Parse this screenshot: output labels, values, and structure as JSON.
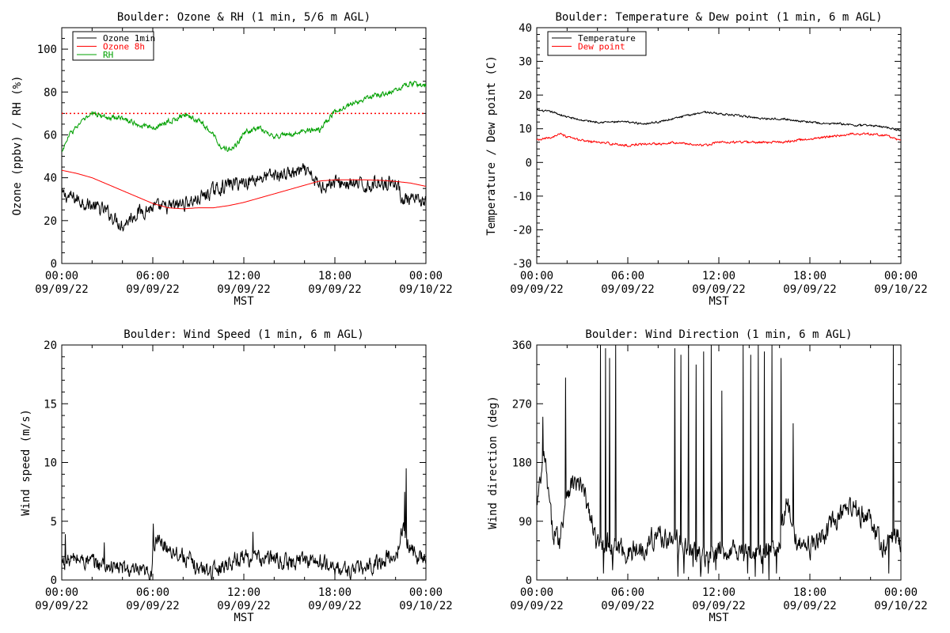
{
  "chart_data": [
    {
      "type": "line",
      "title": "Boulder: Ozone & RH (1 min, 5/6 m AGL)",
      "ylabel": "Ozone (ppbv) / RH (%)",
      "xlabel": "MST",
      "ylim": [
        0,
        110
      ],
      "yticks": [
        "0",
        "20",
        "40",
        "60",
        "80",
        "100"
      ],
      "x_range_hours": [
        0,
        24
      ],
      "xticks": [
        {
          "time": "00:00",
          "date": "09/09/22"
        },
        {
          "time": "06:00",
          "date": "09/09/22"
        },
        {
          "time": "12:00",
          "date": "09/09/22"
        },
        {
          "time": "18:00",
          "date": "09/09/22"
        },
        {
          "time": "00:00",
          "date": "09/10/22"
        }
      ],
      "legend_position": "top-left",
      "reference_line": {
        "y": 70,
        "color": "#ff0000",
        "style": "dotted"
      },
      "series": [
        {
          "name": "Ozone 1min",
          "color": "#000000",
          "x": [
            0,
            1,
            2,
            3,
            4,
            5,
            6,
            7,
            8,
            9,
            10,
            11,
            12,
            13,
            14,
            15,
            16,
            16.5,
            17,
            18,
            19,
            20,
            21,
            22,
            22.5,
            23,
            24
          ],
          "y": [
            32,
            30,
            27,
            24,
            18,
            24,
            26,
            26,
            28,
            30,
            34,
            37,
            38,
            40,
            41,
            42,
            43,
            40,
            36,
            38,
            37,
            36,
            38,
            38,
            30,
            29,
            29
          ],
          "noise": 3.5
        },
        {
          "name": "Ozone 8h",
          "color": "#ff0000",
          "x": [
            0,
            1,
            2,
            3,
            4,
            5,
            6,
            7,
            8,
            9,
            10,
            11,
            12,
            13,
            14,
            15,
            16,
            17,
            18,
            19,
            20,
            21,
            22,
            23,
            24
          ],
          "y": [
            43.5,
            42,
            40,
            37,
            34,
            31,
            28,
            26,
            25.5,
            26,
            26,
            27,
            28.5,
            30.5,
            32.5,
            34.5,
            36.5,
            38.5,
            39,
            39,
            39,
            38.8,
            38.3,
            37.5,
            36
          ],
          "noise": 0
        },
        {
          "name": "RH",
          "color": "#00a000",
          "x": [
            0,
            0.5,
            1,
            1.5,
            2,
            3,
            4,
            5,
            6,
            7,
            8,
            9,
            10,
            10.5,
            11,
            11.5,
            12,
            13,
            14,
            15,
            16,
            17,
            18,
            19,
            20,
            21,
            22,
            23,
            24
          ],
          "y": [
            52,
            60,
            64,
            67,
            70,
            68,
            68,
            65,
            63,
            66,
            69,
            67,
            60,
            55,
            53,
            55,
            61,
            63,
            59,
            60,
            62,
            62,
            71,
            74,
            77,
            79,
            81,
            84,
            83
          ],
          "noise": 1.3
        }
      ]
    },
    {
      "type": "line",
      "title": "Boulder: Temperature & Dew point (1 min, 6 m AGL)",
      "ylabel": "Temperature / Dew point (C)",
      "xlabel": "MST",
      "ylim": [
        -30,
        40
      ],
      "yticks": [
        "-30",
        "-20",
        "-10",
        "0",
        "10",
        "20",
        "30",
        "40"
      ],
      "x_range_hours": [
        0,
        24
      ],
      "xticks": [
        {
          "time": "00:00",
          "date": "09/09/22"
        },
        {
          "time": "06:00",
          "date": "09/09/22"
        },
        {
          "time": "12:00",
          "date": "09/09/22"
        },
        {
          "time": "18:00",
          "date": "09/09/22"
        },
        {
          "time": "00:00",
          "date": "09/10/22"
        }
      ],
      "legend_position": "top-left",
      "series": [
        {
          "name": "Temperature",
          "color": "#000000",
          "x": [
            0,
            1,
            2,
            3,
            4,
            5,
            6,
            7,
            8,
            9,
            10,
            11,
            12,
            13,
            14,
            15,
            16,
            17,
            18,
            19,
            20,
            21,
            22,
            23,
            24
          ],
          "y": [
            15.5,
            15,
            13.5,
            12.5,
            12,
            12,
            12,
            11.5,
            12,
            13,
            14,
            15,
            14.5,
            14,
            13.5,
            13,
            13,
            12.5,
            12,
            11.5,
            11.5,
            11,
            11,
            10.5,
            9.5
          ],
          "noise": 0.3
        },
        {
          "name": "Dew point",
          "color": "#ff0000",
          "x": [
            0,
            1,
            1.5,
            2,
            3,
            4,
            5,
            6,
            7,
            8,
            9,
            10,
            11,
            12,
            13,
            14,
            15,
            16,
            17,
            18,
            19,
            20,
            21,
            22,
            23,
            24
          ],
          "y": [
            6.5,
            7.5,
            8.5,
            7.5,
            6.5,
            6,
            5.5,
            5,
            5.5,
            5.5,
            6,
            5.5,
            5,
            6,
            6,
            6,
            6,
            6,
            6.5,
            7,
            7.5,
            8,
            8.5,
            8.5,
            8,
            6.5
          ],
          "noise": 0.35
        }
      ]
    },
    {
      "type": "line",
      "title": "Boulder: Wind Speed (1 min, 6 m AGL)",
      "ylabel": "Wind speed (m/s)",
      "xlabel": "MST",
      "ylim": [
        0,
        20
      ],
      "yticks": [
        "0",
        "5",
        "10",
        "15",
        "20"
      ],
      "x_range_hours": [
        0,
        24
      ],
      "xticks": [
        {
          "time": "00:00",
          "date": "09/09/22"
        },
        {
          "time": "06:00",
          "date": "09/09/22"
        },
        {
          "time": "12:00",
          "date": "09/09/22"
        },
        {
          "time": "18:00",
          "date": "09/09/22"
        },
        {
          "time": "00:00",
          "date": "09/10/22"
        }
      ],
      "series": [
        {
          "name": "",
          "color": "#000000",
          "x": [
            0,
            1,
            2,
            3,
            4,
            5,
            5.9,
            6,
            6.5,
            7,
            8,
            9,
            10,
            11,
            12,
            13,
            14,
            15,
            16,
            17,
            18,
            19,
            20,
            21,
            21.5,
            22,
            22.5,
            23,
            24
          ],
          "y": [
            1.5,
            1.8,
            1.5,
            1.2,
            1,
            0.6,
            0.5,
            3,
            3.2,
            2.8,
            2,
            1,
            0.8,
            1.5,
            2,
            1.8,
            1.8,
            1.4,
            1.8,
            1.5,
            1,
            0.8,
            1,
            1.5,
            2,
            1.7,
            4.5,
            2.5,
            1.8
          ],
          "noise": 0.75,
          "spikes": [
            {
              "x": 22.7,
              "y": 9.5
            },
            {
              "x": 22.6,
              "y": 7.5
            },
            {
              "x": 6.05,
              "y": 4.8
            },
            {
              "x": 0.25,
              "y": 3.9
            },
            {
              "x": 2.8,
              "y": 3.2
            },
            {
              "x": 12.6,
              "y": 4.1
            }
          ]
        }
      ]
    },
    {
      "type": "line",
      "title": "Boulder: Wind Direction (1 min, 6 m AGL)",
      "ylabel": "Wind direction (deg)",
      "xlabel": "MST",
      "ylim": [
        0,
        360
      ],
      "yticks": [
        "0",
        "90",
        "180",
        "270",
        "360"
      ],
      "x_range_hours": [
        0,
        24
      ],
      "xticks": [
        {
          "time": "00:00",
          "date": "09/09/22"
        },
        {
          "time": "06:00",
          "date": "09/09/22"
        },
        {
          "time": "12:00",
          "date": "09/09/22"
        },
        {
          "time": "18:00",
          "date": "09/09/22"
        },
        {
          "time": "00:00",
          "date": "09/10/22"
        }
      ],
      "series": [
        {
          "name": "",
          "color": "#000000",
          "x": [
            0,
            0.5,
            1,
            1.5,
            2,
            2.5,
            3,
            3.5,
            4,
            4.5,
            5,
            5.5,
            6,
            7,
            8,
            9,
            10,
            11,
            12,
            13,
            14,
            15,
            16,
            16.5,
            17,
            17.5,
            18,
            19,
            20,
            21,
            22,
            22.5,
            23,
            23.5,
            24
          ],
          "y": [
            110,
            190,
            80,
            60,
            140,
            150,
            140,
            100,
            50,
            60,
            50,
            50,
            40,
            50,
            70,
            60,
            50,
            30,
            40,
            50,
            40,
            40,
            60,
            120,
            60,
            60,
            50,
            70,
            100,
            110,
            90,
            60,
            50,
            70,
            60
          ],
          "noise": 18,
          "spikes": [
            {
              "x": 0.4,
              "y": 250
            },
            {
              "x": 1.9,
              "y": 310
            },
            {
              "x": 4.2,
              "y": 360
            },
            {
              "x": 4.4,
              "y": 10
            },
            {
              "x": 4.55,
              "y": 355
            },
            {
              "x": 4.8,
              "y": 340
            },
            {
              "x": 5.0,
              "y": 15
            },
            {
              "x": 5.2,
              "y": 360
            },
            {
              "x": 9.1,
              "y": 355
            },
            {
              "x": 9.3,
              "y": 5
            },
            {
              "x": 9.5,
              "y": 345
            },
            {
              "x": 9.7,
              "y": 10
            },
            {
              "x": 10.0,
              "y": 360
            },
            {
              "x": 10.3,
              "y": 20
            },
            {
              "x": 10.5,
              "y": 330
            },
            {
              "x": 10.8,
              "y": 5
            },
            {
              "x": 11.0,
              "y": 350
            },
            {
              "x": 11.3,
              "y": 10
            },
            {
              "x": 11.5,
              "y": 360
            },
            {
              "x": 11.8,
              "y": 15
            },
            {
              "x": 12.2,
              "y": 290
            },
            {
              "x": 13.6,
              "y": 360
            },
            {
              "x": 13.9,
              "y": 10
            },
            {
              "x": 14.1,
              "y": 345
            },
            {
              "x": 14.4,
              "y": 5
            },
            {
              "x": 14.6,
              "y": 360
            },
            {
              "x": 14.9,
              "y": 10
            },
            {
              "x": 15.0,
              "y": 350
            },
            {
              "x": 15.3,
              "y": 0
            },
            {
              "x": 15.5,
              "y": 360
            },
            {
              "x": 15.8,
              "y": 10
            },
            {
              "x": 16.1,
              "y": 340
            },
            {
              "x": 16.9,
              "y": 240
            },
            {
              "x": 23.2,
              "y": 10
            },
            {
              "x": 23.5,
              "y": 360
            }
          ]
        }
      ]
    }
  ]
}
